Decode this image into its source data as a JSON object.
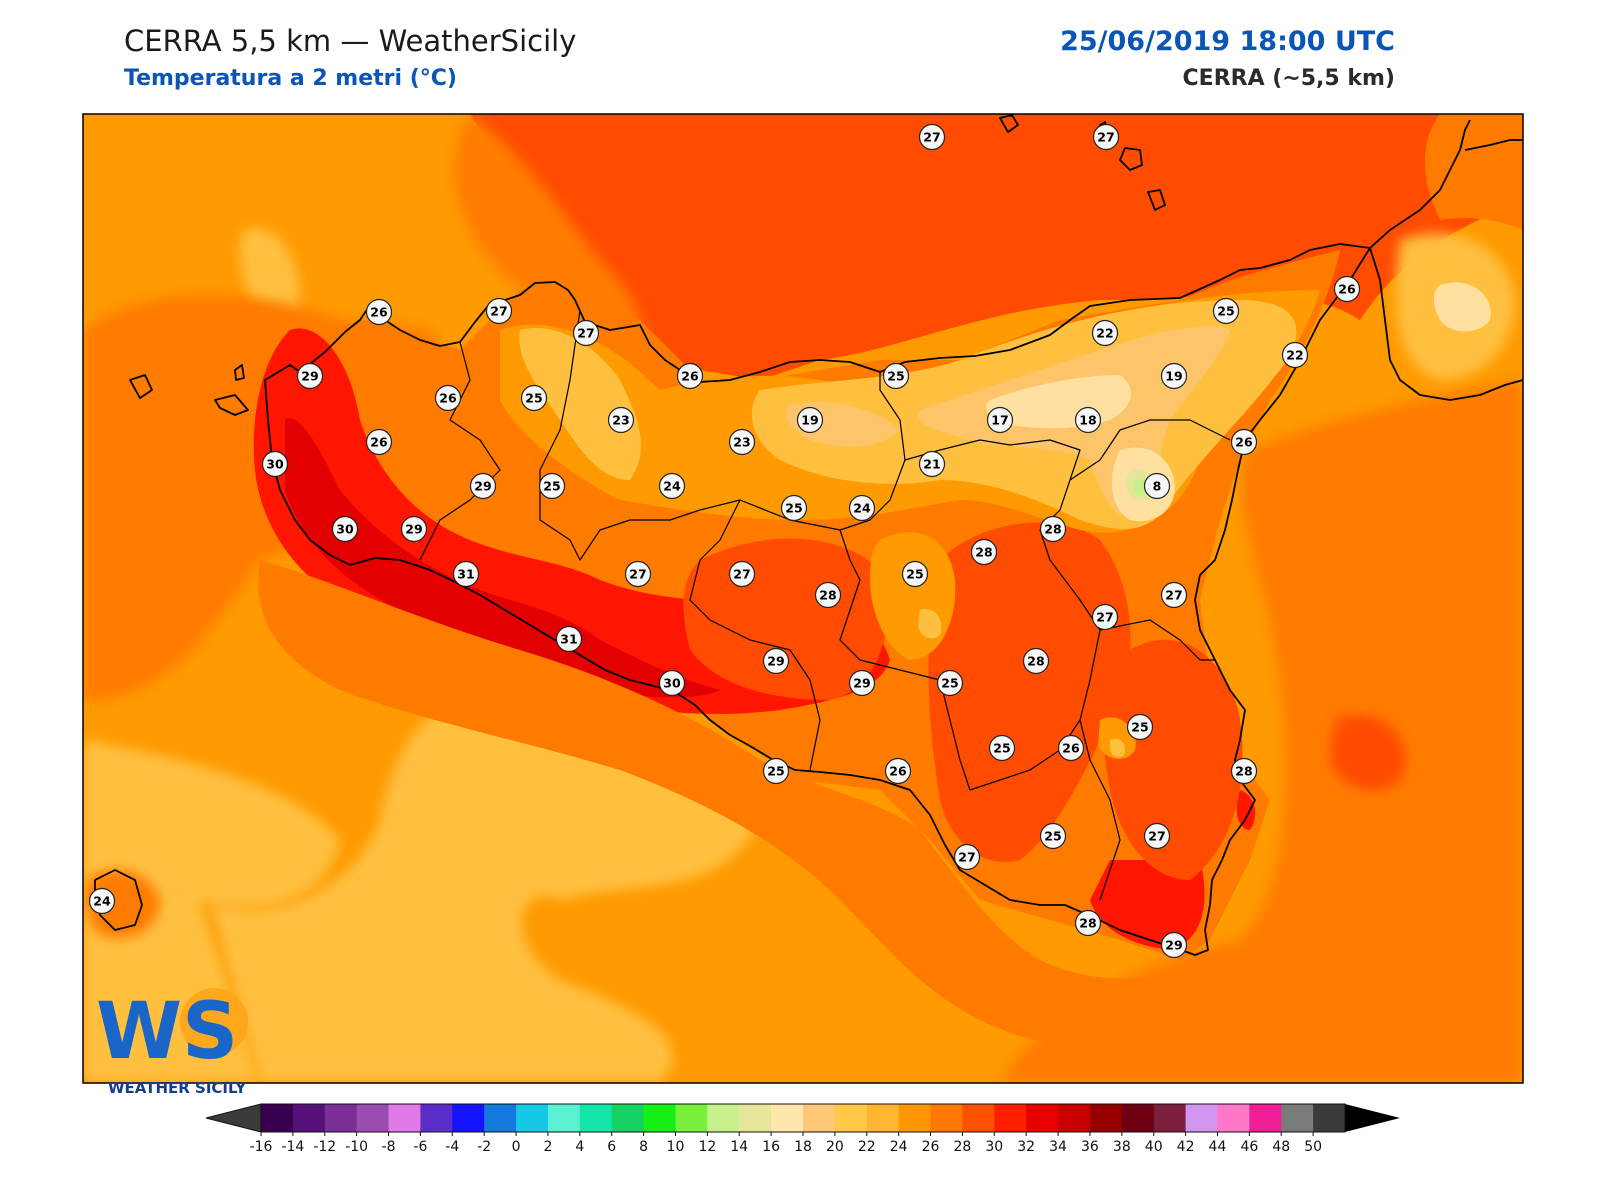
{
  "header": {
    "title": "CERRA 5,5 km — WeatherSicily",
    "subtitle": "Temperatura a 2 metri (°C)",
    "datetime": "25/06/2019 18:00 UTC",
    "model": "CERRA (~5,5 km)"
  },
  "logo": {
    "letters": "WS",
    "text": "WEATHER SICILY"
  },
  "colors": {
    "sea_warm": "#ff9a00",
    "sea_mild": "#ffc040",
    "land_26": "#ff7b00",
    "land_28": "#ff4c00",
    "land_30": "#ff1500",
    "land_32": "#e20000",
    "cool_22": "#ffc040",
    "cool_20": "#fec46a",
    "cool_18": "#ffe0a0",
    "coast": "#000000"
  },
  "stations": [
    {
      "v": "27"
    },
    {
      "v": "27"
    },
    {
      "v": "26"
    },
    {
      "v": "27"
    },
    {
      "v": "27"
    },
    {
      "v": "26"
    },
    {
      "v": "25"
    },
    {
      "v": "22"
    },
    {
      "v": "25"
    },
    {
      "v": "26"
    },
    {
      "v": "29"
    },
    {
      "v": "26"
    },
    {
      "v": "25"
    },
    {
      "v": "23"
    },
    {
      "v": "19"
    },
    {
      "v": "22"
    },
    {
      "v": "19"
    },
    {
      "v": "17"
    },
    {
      "v": "18"
    },
    {
      "v": "26"
    },
    {
      "v": "23"
    },
    {
      "v": "30"
    },
    {
      "v": "26"
    },
    {
      "v": "29"
    },
    {
      "v": "25"
    },
    {
      "v": "24"
    },
    {
      "v": "21"
    },
    {
      "v": "8"
    },
    {
      "v": "30"
    },
    {
      "v": "29"
    },
    {
      "v": "25"
    },
    {
      "v": "24"
    },
    {
      "v": "28"
    },
    {
      "v": "31"
    },
    {
      "v": "27"
    },
    {
      "v": "27"
    },
    {
      "v": "28"
    },
    {
      "v": "25"
    },
    {
      "v": "28"
    },
    {
      "v": "27"
    },
    {
      "v": "27"
    },
    {
      "v": "31"
    },
    {
      "v": "29"
    },
    {
      "v": "29"
    },
    {
      "v": "25"
    },
    {
      "v": "28"
    },
    {
      "v": "30"
    },
    {
      "v": "25"
    },
    {
      "v": "26"
    },
    {
      "v": "25"
    },
    {
      "v": "25"
    },
    {
      "v": "26"
    },
    {
      "v": "28"
    },
    {
      "v": "27"
    },
    {
      "v": "25"
    },
    {
      "v": "27"
    },
    {
      "v": "24"
    },
    {
      "v": "28"
    },
    {
      "v": "29"
    }
  ],
  "colorbar": {
    "ticks": [
      "-16",
      "-14",
      "-12",
      "-10",
      "-8",
      "-6",
      "-4",
      "-2",
      "0",
      "2",
      "4",
      "6",
      "8",
      "10",
      "12",
      "14",
      "16",
      "18",
      "20",
      "22",
      "24",
      "26",
      "28",
      "30",
      "32",
      "34",
      "36",
      "38",
      "40",
      "42",
      "44",
      "46",
      "48",
      "50"
    ],
    "colors": [
      "#3a0050",
      "#55107a",
      "#7a2e96",
      "#9a4cb0",
      "#e07ae8",
      "#5a2dc8",
      "#1414ff",
      "#1478dc",
      "#14c8e6",
      "#5af0d2",
      "#14e6aa",
      "#14d264",
      "#14f014",
      "#78f03c",
      "#c8f08c",
      "#e6e69b",
      "#ffe6aa",
      "#ffc878",
      "#ffc846",
      "#ffb432",
      "#ff9600",
      "#ff7800",
      "#ff5000",
      "#ff1e00",
      "#e60000",
      "#c80000",
      "#960000",
      "#6e0014",
      "#7d1e3c",
      "#d296f0",
      "#ff78c8",
      "#f01e96",
      "#7a7a7a",
      "#3a3a3a"
    ],
    "under_color": "#3a3a3a",
    "over_color": "#000000"
  }
}
